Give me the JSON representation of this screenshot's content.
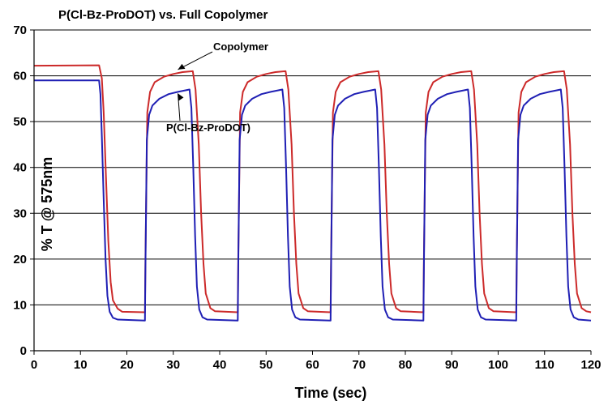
{
  "chart_data": {
    "type": "line",
    "title": "P(Cl-Bz-ProDOT) vs. Full Copolymer",
    "xlabel": "Time (sec)",
    "ylabel": "% T @ 575nm",
    "xlim": [
      0,
      120
    ],
    "ylim": [
      0,
      70
    ],
    "x_ticks": [
      0,
      10,
      20,
      30,
      40,
      50,
      60,
      70,
      80,
      90,
      100,
      110,
      120
    ],
    "y_ticks": [
      0,
      10,
      20,
      30,
      40,
      50,
      60,
      70
    ],
    "grid": "horizontal",
    "legend": "none",
    "series": [
      {
        "name": "Copolymer",
        "color": "#cc2a2a",
        "x": [
          0,
          14,
          14.6,
          15.0,
          15.5,
          16.0,
          16.5,
          17.0,
          18.0,
          19.0,
          23.9,
          24.0,
          24.4,
          25,
          26,
          28,
          30,
          32,
          34.2,
          34.8,
          35.5,
          36.0,
          36.5,
          37.0,
          38.0,
          39.0,
          43.9,
          44.0,
          44.4,
          45,
          46,
          48,
          50,
          52,
          54.2,
          54.8,
          55.5,
          56.0,
          56.5,
          57.0,
          58.0,
          59.0,
          63.9,
          64.0,
          64.4,
          65,
          66,
          68,
          70,
          72,
          74.2,
          74.8,
          75.5,
          76.0,
          76.5,
          77.0,
          78.0,
          79.0,
          83.9,
          84.0,
          84.4,
          85,
          86,
          88,
          90,
          92,
          94.2,
          94.8,
          95.5,
          96.0,
          96.5,
          97.0,
          98.0,
          99.0,
          103.9,
          104.0,
          104.4,
          105,
          106,
          108,
          110,
          112,
          114.2,
          114.8,
          115.5,
          116.0,
          116.5,
          117.0,
          118.0,
          119.0,
          120
        ],
        "values": [
          62.2,
          62.3,
          59.5,
          52,
          38,
          24,
          15,
          11,
          9.2,
          8.5,
          8.4,
          20,
          52,
          56.5,
          58.6,
          59.8,
          60.4,
          60.8,
          61,
          57,
          45,
          30,
          19,
          12.5,
          9.3,
          8.6,
          8.4,
          20,
          52,
          56.5,
          58.6,
          59.8,
          60.4,
          60.8,
          61,
          57,
          45,
          30,
          19,
          12.5,
          9.3,
          8.6,
          8.4,
          20,
          52,
          56.5,
          58.6,
          59.8,
          60.4,
          60.8,
          61,
          57,
          45,
          30,
          19,
          12.5,
          9.3,
          8.6,
          8.4,
          20,
          52,
          56.5,
          58.6,
          59.8,
          60.4,
          60.8,
          61,
          57,
          45,
          30,
          19,
          12.5,
          9.3,
          8.6,
          8.4,
          20,
          52,
          56.5,
          58.6,
          59.8,
          60.4,
          60.8,
          61,
          57,
          45,
          30,
          19,
          12.5,
          9.3,
          8.6,
          8.4
        ]
      },
      {
        "name": "P(Cl-Bz-ProDOT)",
        "color": "#1f1fb4",
        "x": [
          0,
          14,
          14.3,
          14.6,
          15.0,
          15.4,
          15.8,
          16.3,
          17.0,
          18.0,
          23.9,
          24.0,
          24.3,
          24.8,
          25.5,
          27,
          29,
          31,
          33.5,
          33.9,
          34.3,
          34.7,
          35.1,
          35.6,
          36.3,
          37.3,
          43.9,
          44.0,
          44.3,
          44.8,
          45.5,
          47,
          49,
          51,
          53.5,
          53.9,
          54.3,
          54.7,
          55.1,
          55.6,
          56.3,
          57.3,
          63.9,
          64.0,
          64.3,
          64.8,
          65.5,
          67,
          69,
          71,
          73.5,
          73.9,
          74.3,
          74.7,
          75.1,
          75.6,
          76.3,
          77.3,
          83.9,
          84.0,
          84.3,
          84.8,
          85.5,
          87,
          89,
          91,
          93.5,
          93.9,
          94.3,
          94.7,
          95.1,
          95.6,
          96.3,
          97.3,
          103.9,
          104.0,
          104.3,
          104.8,
          105.5,
          107,
          109,
          111,
          113.5,
          113.9,
          114.3,
          114.7,
          115.1,
          115.6,
          116.3,
          117.3,
          120
        ],
        "values": [
          59,
          59,
          56,
          47,
          33,
          20,
          12,
          8.5,
          7.2,
          6.8,
          6.6,
          18,
          46,
          51.5,
          53.5,
          55,
          56,
          56.5,
          57,
          53,
          40,
          25,
          14,
          9,
          7.3,
          6.8,
          6.6,
          18,
          46,
          51.5,
          53.5,
          55,
          56,
          56.5,
          57,
          53,
          40,
          25,
          14,
          9,
          7.3,
          6.8,
          6.6,
          18,
          46,
          51.5,
          53.5,
          55,
          56,
          56.5,
          57,
          53,
          40,
          25,
          14,
          9,
          7.3,
          6.8,
          6.6,
          18,
          46,
          51.5,
          53.5,
          55,
          56,
          56.5,
          57,
          53,
          40,
          25,
          14,
          9,
          7.3,
          6.8,
          6.6,
          18,
          46,
          51.5,
          53.5,
          55,
          56,
          56.5,
          57,
          53,
          40,
          25,
          14,
          9,
          7.3,
          6.8,
          6.6
        ]
      }
    ],
    "annotations": [
      {
        "text": "Copolymer",
        "points_to": {
          "x": 31,
          "y": 61
        }
      },
      {
        "text": "P(Cl-Bz-ProDOT)",
        "points_to": {
          "x": 31,
          "y": 56.5
        }
      }
    ]
  }
}
